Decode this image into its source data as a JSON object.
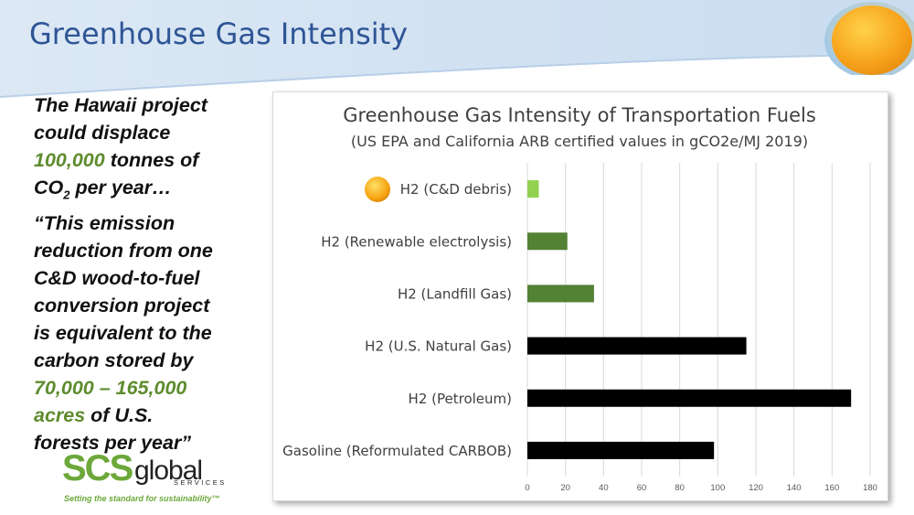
{
  "slide": {
    "title": "Greenhouse Gas Intensity",
    "colors": {
      "title": "#2e5596",
      "green_text": "#5e8c2e",
      "banner": "#dbe8f5",
      "sun": "#f6a81c"
    },
    "icons": [
      "sun-icon"
    ]
  },
  "quote": {
    "l1": "The Hawaii project",
    "l2": "could displace",
    "l3_green": "100,000",
    "l3_rest": " tonnes of",
    "l4a": "CO",
    "l4_sub": "2",
    "l4b": " per year…",
    "l5": "“This emission",
    "l6": "reduction from one",
    "l7": "C&D wood-to-fuel",
    "l8": "conversion project",
    "l9": "is equivalent to the",
    "l10": "carbon stored by",
    "l11_green": "70,000 – 165,000",
    "l12_green": "acres",
    "l12_rest": " of U.S.",
    "l13": "forests per year”"
  },
  "logo": {
    "scs": "SCS",
    "global": "global",
    "services": "SERVICES",
    "tagline": "Setting the standard for sustainability™"
  },
  "chart_data": {
    "type": "bar",
    "orientation": "horizontal",
    "title": "Greenhouse Gas Intensity of Transportation Fuels",
    "subtitle": "(US EPA and California ARB certified values in gCO2e/MJ 2019)",
    "categories": [
      "H2 (C&D debris)",
      "H2 (Renewable electrolysis)",
      "H2 (Landfill Gas)",
      "H2 (U.S. Natural Gas)",
      "H2 (Petroleum)",
      "Gasoline (Reformulated CARBOB)"
    ],
    "values": [
      6,
      21,
      35,
      115,
      170,
      98
    ],
    "bar_colors": [
      "#92d050",
      "#548235",
      "#548235",
      "#000000",
      "#000000",
      "#000000"
    ],
    "xlim": [
      0,
      180
    ],
    "xticks": [
      "0",
      "20",
      "40",
      "60",
      "80",
      "100",
      "120",
      "140",
      "160",
      "180"
    ],
    "grid": true,
    "xlabel": "",
    "ylabel": ""
  }
}
